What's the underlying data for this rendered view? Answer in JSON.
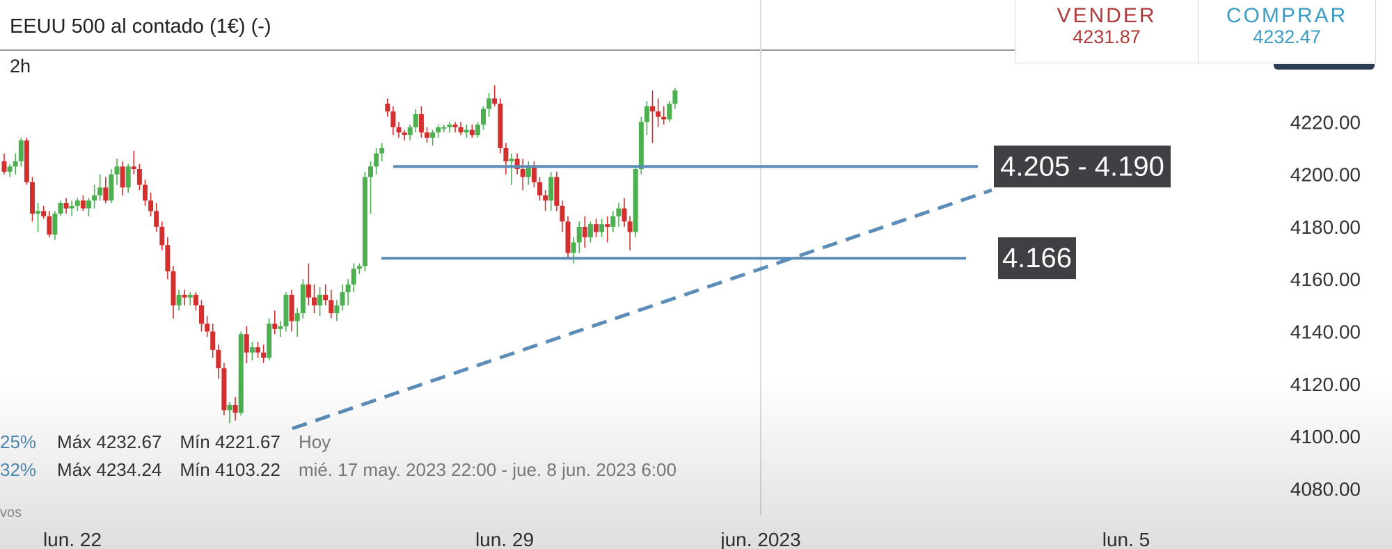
{
  "header": {
    "title": "EEUU 500 al contado (1€) (-)",
    "interval": "2h"
  },
  "trade": {
    "sell_label": "VENDER",
    "sell_price": "4231.87",
    "buy_label": "COMPRAR",
    "buy_price": "4232.47"
  },
  "stats": [
    {
      "pct": "25%",
      "max": "Máx 4232.67",
      "min": "Mín 4221.67",
      "period": "Hoy"
    },
    {
      "pct": "32%",
      "max": "Máx 4234.24",
      "min": "Mín 4103.22",
      "period": "mié. 17 may. 2023 22:00 - jue. 8 jun. 2023 6:00"
    }
  ],
  "source_note": "vos",
  "colors": {
    "up": "#4caf50",
    "down": "#d32f2f",
    "level_line": "#5b8db8",
    "label_bg": "#3f3f44"
  },
  "chart_data": {
    "type": "candlestick",
    "y_ticks": [
      "4220.00",
      "4200.00",
      "4180.00",
      "4160.00",
      "4140.00",
      "4120.00",
      "4100.00",
      "4080.00"
    ],
    "ylim": [
      4074,
      4240
    ],
    "x_ticks": [
      "lun. 22",
      "lun. 29",
      "jun. 2023",
      "lun. 5"
    ],
    "levels": [
      {
        "label": "4.205 - 4.190",
        "value": 4203
      },
      {
        "label": "4.166",
        "value": 4168
      }
    ],
    "trendline": {
      "style": "dashed",
      "from": 4103,
      "to": 4194
    },
    "candles": [
      [
        4205,
        4208,
        4200,
        4201
      ],
      [
        4201,
        4204,
        4199,
        4203
      ],
      [
        4203,
        4208,
        4200,
        4205
      ],
      [
        4205,
        4214,
        4203,
        4213
      ],
      [
        4213,
        4214,
        4196,
        4197
      ],
      [
        4197,
        4199,
        4182,
        4185
      ],
      [
        4185,
        4189,
        4178,
        4186
      ],
      [
        4186,
        4188,
        4183,
        4184
      ],
      [
        4184,
        4186,
        4176,
        4177
      ],
      [
        4177,
        4186,
        4175,
        4185
      ],
      [
        4185,
        4190,
        4184,
        4189
      ],
      [
        4189,
        4191,
        4185,
        4187
      ],
      [
        4187,
        4190,
        4184,
        4188
      ],
      [
        4188,
        4191,
        4186,
        4190
      ],
      [
        4190,
        4192,
        4186,
        4187
      ],
      [
        4187,
        4191,
        4184,
        4190
      ],
      [
        4190,
        4196,
        4187,
        4192
      ],
      [
        4192,
        4200,
        4190,
        4195
      ],
      [
        4195,
        4199,
        4189,
        4190
      ],
      [
        4190,
        4202,
        4189,
        4200
      ],
      [
        4200,
        4206,
        4196,
        4203
      ],
      [
        4203,
        4205,
        4192,
        4195
      ],
      [
        4195,
        4204,
        4193,
        4203
      ],
      [
        4203,
        4209,
        4200,
        4202
      ],
      [
        4202,
        4204,
        4194,
        4196
      ],
      [
        4196,
        4198,
        4188,
        4190
      ],
      [
        4190,
        4193,
        4184,
        4186
      ],
      [
        4186,
        4189,
        4178,
        4180
      ],
      [
        4180,
        4182,
        4171,
        4173
      ],
      [
        4173,
        4176,
        4160,
        4163
      ],
      [
        4163,
        4165,
        4145,
        4150
      ],
      [
        4150,
        4156,
        4148,
        4154
      ],
      [
        4154,
        4156,
        4150,
        4153
      ],
      [
        4153,
        4155,
        4150,
        4154
      ],
      [
        4154,
        4155,
        4148,
        4150
      ],
      [
        4150,
        4152,
        4140,
        4143
      ],
      [
        4143,
        4146,
        4138,
        4140
      ],
      [
        4140,
        4143,
        4130,
        4133
      ],
      [
        4133,
        4135,
        4122,
        4126
      ],
      [
        4126,
        4128,
        4108,
        4110
      ],
      [
        4110,
        4113,
        4105,
        4112
      ],
      [
        4112,
        4115,
        4106,
        4109
      ],
      [
        4109,
        4140,
        4108,
        4139
      ],
      [
        4139,
        4142,
        4128,
        4132
      ],
      [
        4132,
        4136,
        4129,
        4134
      ],
      [
        4134,
        4136,
        4130,
        4132
      ],
      [
        4132,
        4135,
        4128,
        4130
      ],
      [
        4130,
        4145,
        4129,
        4143
      ],
      [
        4143,
        4148,
        4139,
        4141
      ],
      [
        4141,
        4144,
        4138,
        4142
      ],
      [
        4142,
        4155,
        4140,
        4154
      ],
      [
        4154,
        4156,
        4140,
        4144
      ],
      [
        4144,
        4149,
        4138,
        4147
      ],
      [
        4147,
        4160,
        4145,
        4158
      ],
      [
        4158,
        4166,
        4150,
        4153
      ],
      [
        4153,
        4158,
        4147,
        4150
      ],
      [
        4150,
        4157,
        4146,
        4154
      ],
      [
        4154,
        4158,
        4150,
        4152
      ],
      [
        4152,
        4156,
        4145,
        4147
      ],
      [
        4147,
        4152,
        4144,
        4150
      ],
      [
        4150,
        4158,
        4148,
        4155
      ],
      [
        4155,
        4160,
        4150,
        4158
      ],
      [
        4158,
        4166,
        4155,
        4164
      ],
      [
        4164,
        4166,
        4162,
        4165
      ],
      [
        4165,
        4201,
        4163,
        4199
      ],
      [
        4199,
        4205,
        4185,
        4203
      ],
      [
        4203,
        4210,
        4200,
        4208
      ],
      [
        4208,
        4212,
        4205,
        4210
      ],
      [
        4227,
        4229,
        4222,
        4224
      ],
      [
        4224,
        4226,
        4215,
        4218
      ],
      [
        4218,
        4220,
        4214,
        4216
      ],
      [
        4216,
        4217,
        4213,
        4215
      ],
      [
        4215,
        4219,
        4213,
        4218
      ],
      [
        4218,
        4225,
        4216,
        4223
      ],
      [
        4223,
        4226,
        4214,
        4216
      ],
      [
        4216,
        4218,
        4212,
        4214
      ],
      [
        4214,
        4217,
        4211,
        4216
      ],
      [
        4216,
        4219,
        4214,
        4218
      ],
      [
        4218,
        4219,
        4216,
        4218
      ],
      [
        4218,
        4220,
        4216,
        4219
      ],
      [
        4219,
        4220,
        4216,
        4218
      ],
      [
        4218,
        4220,
        4215,
        4216
      ],
      [
        4216,
        4219,
        4214,
        4217
      ],
      [
        4217,
        4219,
        4214,
        4215
      ],
      [
        4215,
        4220,
        4214,
        4219
      ],
      [
        4219,
        4226,
        4217,
        4225
      ],
      [
        4225,
        4231,
        4222,
        4229
      ],
      [
        4229,
        4234,
        4226,
        4227
      ],
      [
        4227,
        4229,
        4208,
        4210
      ],
      [
        4210,
        4212,
        4200,
        4205
      ],
      [
        4205,
        4208,
        4196,
        4206
      ],
      [
        4206,
        4208,
        4200,
        4202
      ],
      [
        4202,
        4206,
        4194,
        4199
      ],
      [
        4199,
        4205,
        4196,
        4203
      ],
      [
        4203,
        4205,
        4195,
        4197
      ],
      [
        4197,
        4199,
        4190,
        4192
      ],
      [
        4192,
        4194,
        4186,
        4190
      ],
      [
        4190,
        4201,
        4186,
        4199
      ],
      [
        4199,
        4201,
        4186,
        4188
      ],
      [
        4188,
        4190,
        4178,
        4182
      ],
      [
        4182,
        4184,
        4168,
        4170
      ],
      [
        4170,
        4176,
        4166,
        4174
      ],
      [
        4174,
        4182,
        4170,
        4180
      ],
      [
        4180,
        4184,
        4172,
        4176
      ],
      [
        4176,
        4182,
        4174,
        4181
      ],
      [
        4181,
        4183,
        4176,
        4178
      ],
      [
        4178,
        4183,
        4176,
        4181
      ],
      [
        4181,
        4184,
        4174,
        4180
      ],
      [
        4180,
        4186,
        4178,
        4184
      ],
      [
        4184,
        4189,
        4180,
        4187
      ],
      [
        4187,
        4191,
        4180,
        4182
      ],
      [
        4182,
        4184,
        4171,
        4178
      ],
      [
        4178,
        4203,
        4176,
        4202
      ],
      [
        4202,
        4222,
        4200,
        4220
      ],
      [
        4220,
        4228,
        4215,
        4226
      ],
      [
        4226,
        4232,
        4212,
        4224
      ],
      [
        4224,
        4229,
        4218,
        4222
      ],
      [
        4222,
        4226,
        4219,
        4221
      ],
      [
        4221,
        4228,
        4220,
        4227
      ],
      [
        4227,
        4233,
        4225,
        4232
      ]
    ]
  }
}
